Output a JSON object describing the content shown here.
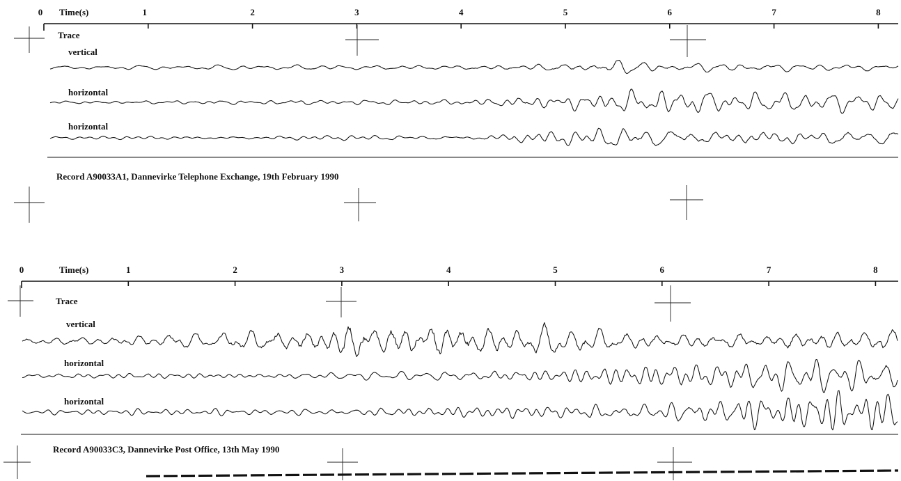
{
  "chart_data": [
    {
      "type": "line",
      "subtype": "seismogram",
      "xlabel": "Time(s)",
      "x_ticks": [
        "0",
        "1",
        "2",
        "3",
        "4",
        "5",
        "6",
        "7",
        "8"
      ],
      "xlim": [
        0,
        8.2
      ],
      "header_label": "Trace",
      "series": [
        {
          "name": "vertical",
          "amplitude_envelope": [
            [
              0,
              0.2
            ],
            [
              4,
              0.3
            ],
            [
              5,
              0.5
            ],
            [
              5.5,
              0.9
            ],
            [
              6,
              0.5
            ],
            [
              8.2,
              0.4
            ]
          ]
        },
        {
          "name": "horizontal",
          "amplitude_envelope": [
            [
              0,
              0.15
            ],
            [
              4,
              0.35
            ],
            [
              5,
              0.9
            ],
            [
              5.9,
              1.5
            ],
            [
              6.5,
              1.0
            ],
            [
              8.2,
              0.9
            ]
          ]
        },
        {
          "name": "horizontal",
          "amplitude_envelope": [
            [
              0,
              0.15
            ],
            [
              4,
              0.35
            ],
            [
              5,
              1.0
            ],
            [
              5.6,
              1.6
            ],
            [
              6.5,
              1.0
            ],
            [
              8.2,
              1.1
            ]
          ]
        }
      ],
      "caption": "Record A90033A1,  Dannevirke Telephone Exchange,  19th February 1990"
    },
    {
      "type": "line",
      "subtype": "seismogram",
      "xlabel": "Time(s)",
      "x_ticks": [
        "0",
        "1",
        "2",
        "3",
        "4",
        "5",
        "6",
        "7",
        "8"
      ],
      "xlim": [
        0,
        8.2
      ],
      "header_label": "Trace",
      "series": [
        {
          "name": "vertical",
          "amplitude_envelope": [
            [
              0,
              0.3
            ],
            [
              1,
              0.5
            ],
            [
              2.5,
              1.0
            ],
            [
              3.2,
              1.9
            ],
            [
              4.3,
              1.5
            ],
            [
              6,
              0.7
            ],
            [
              8.2,
              1.0
            ]
          ]
        },
        {
          "name": "horizontal",
          "amplitude_envelope": [
            [
              0,
              0.15
            ],
            [
              3,
              0.3
            ],
            [
              5,
              0.6
            ],
            [
              6,
              0.9
            ],
            [
              7,
              1.1
            ],
            [
              8.2,
              1.8
            ]
          ]
        },
        {
          "name": "horizontal",
          "amplitude_envelope": [
            [
              0,
              0.15
            ],
            [
              3,
              0.3
            ],
            [
              5,
              0.6
            ],
            [
              6,
              1.0
            ],
            [
              7,
              1.3
            ],
            [
              8.2,
              1.5
            ]
          ]
        }
      ],
      "caption": "Record A90033C3,  Dannevirke Post Office,  13th May 1990"
    }
  ]
}
